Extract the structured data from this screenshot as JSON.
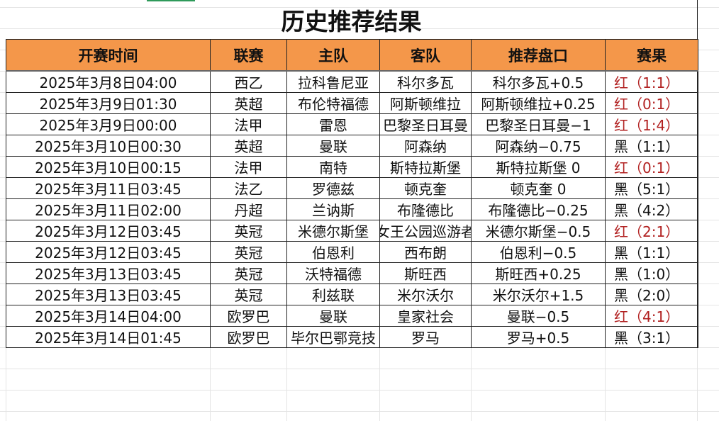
{
  "title": "历史推荐结果",
  "headers": [
    "开赛时间",
    "联赛",
    "主队",
    "客队",
    "推荐盘口",
    "赛果"
  ],
  "colors": {
    "header_bg": "#f4974a",
    "red_result": "#b22222",
    "black_result": "#111111"
  },
  "rows": [
    [
      "2025年3月8日04:00",
      "西乙",
      "拉科鲁尼亚",
      "科尔多瓦",
      "科尔多瓦+0.5",
      "红（1:1）",
      "red"
    ],
    [
      "2025年3月9日01:30",
      "英超",
      "布伦特福德",
      "阿斯顿维拉",
      "阿斯顿维拉+0.25",
      "红（0:1）",
      "red"
    ],
    [
      "2025年3月9日00:00",
      "法甲",
      "雷恩",
      "巴黎圣日耳曼",
      "巴黎圣日耳曼−1",
      "红（1:4）",
      "red"
    ],
    [
      "2025年3月10日00:30",
      "英超",
      "曼联",
      "阿森纳",
      "阿森纳−0.75",
      "黑（1:1）",
      "black"
    ],
    [
      "2025年3月10日00:15",
      "法甲",
      "南特",
      "斯特拉斯堡",
      "斯特拉斯堡 0",
      "红（0:1）",
      "red"
    ],
    [
      "2025年3月11日03:45",
      "法乙",
      "罗德兹",
      "顿克奎",
      "顿克奎 0",
      "黑（5:1）",
      "black"
    ],
    [
      "2025年3月11日02:00",
      "丹超",
      "兰讷斯",
      "布隆德比",
      "布隆德比−0.25",
      "黑（4:2）",
      "black"
    ],
    [
      "2025年3月12日03:45",
      "英冠",
      "米德尔斯堡",
      "女王公园巡游者",
      "米德尔斯堡−0.5",
      "红（2:1）",
      "red"
    ],
    [
      "2025年3月12日03:45",
      "英冠",
      "伯恩利",
      "西布朗",
      "伯恩利−0.5",
      "黑（1:1）",
      "black"
    ],
    [
      "2025年3月13日03:45",
      "英冠",
      "沃特福德",
      "斯旺西",
      "斯旺西+0.25",
      "黑（1:0）",
      "black"
    ],
    [
      "2025年3月13日03:45",
      "英冠",
      "利兹联",
      "米尔沃尔",
      "米尔沃尔+1.5",
      "黑（2:0）",
      "black"
    ],
    [
      "2025年3月14日04:00",
      "欧罗巴",
      "曼联",
      "皇家社会",
      "曼联−0.5",
      "红（4:1）",
      "red"
    ],
    [
      "2025年3月14日01:45",
      "欧罗巴",
      "毕尔巴鄂竞技",
      "罗马",
      "罗马+0.5",
      "黑（3:1）",
      "black"
    ]
  ]
}
